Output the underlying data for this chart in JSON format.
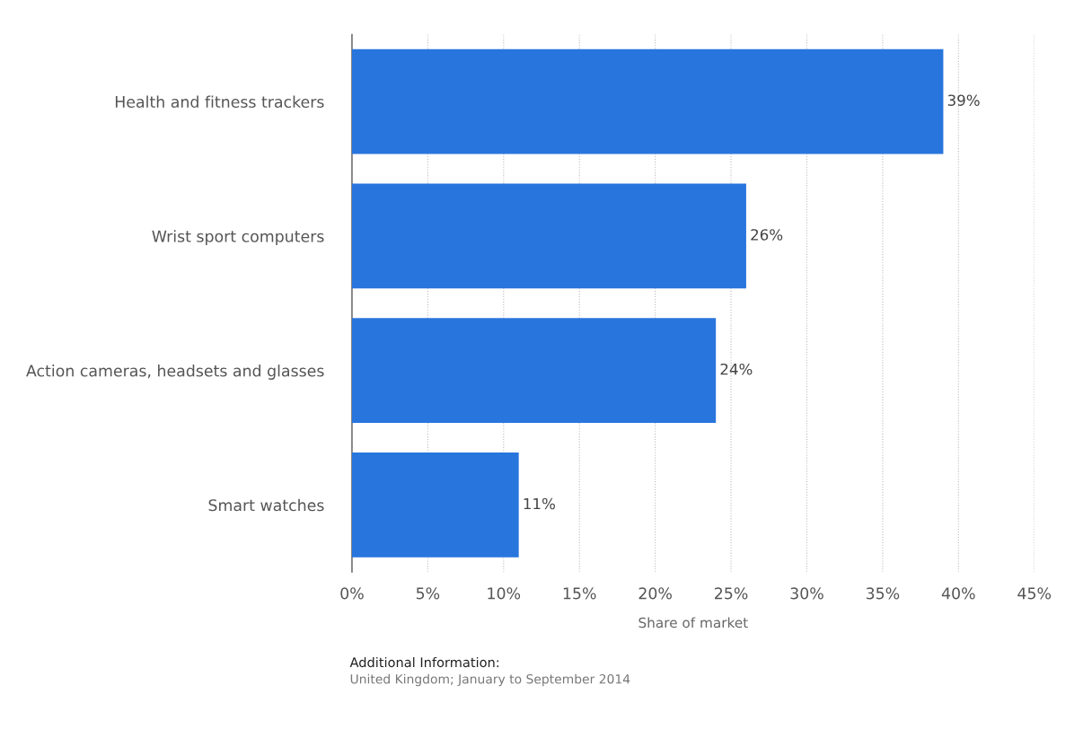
{
  "chart_data": {
    "type": "bar",
    "orientation": "horizontal",
    "xlabel": "Share of market",
    "categories": [
      "Health and fitness trackers",
      "Wrist sport computers",
      "Action cameras, headsets and glasses",
      "Smart watches"
    ],
    "values": [
      39,
      26,
      24,
      11
    ],
    "color": "#2875dd",
    "value_labels": [
      "39%",
      "26%",
      "24%",
      "11%"
    ],
    "xlim": [
      0,
      45
    ],
    "xticks": [
      {
        "value": 0,
        "label": "0%"
      },
      {
        "value": 5,
        "label": "5%"
      },
      {
        "value": 10,
        "label": "10%"
      },
      {
        "value": 15,
        "label": "15%"
      },
      {
        "value": 20,
        "label": "20%"
      },
      {
        "value": 25,
        "label": "25%"
      },
      {
        "value": 30,
        "label": "30%"
      },
      {
        "value": 35,
        "label": "35%"
      },
      {
        "value": 40,
        "label": "40%"
      },
      {
        "value": 45,
        "label": "45%"
      }
    ],
    "grid": "x",
    "legend": false,
    "annotations": [
      "Additional Information:",
      "United Kingdom; January to September 2014"
    ]
  }
}
